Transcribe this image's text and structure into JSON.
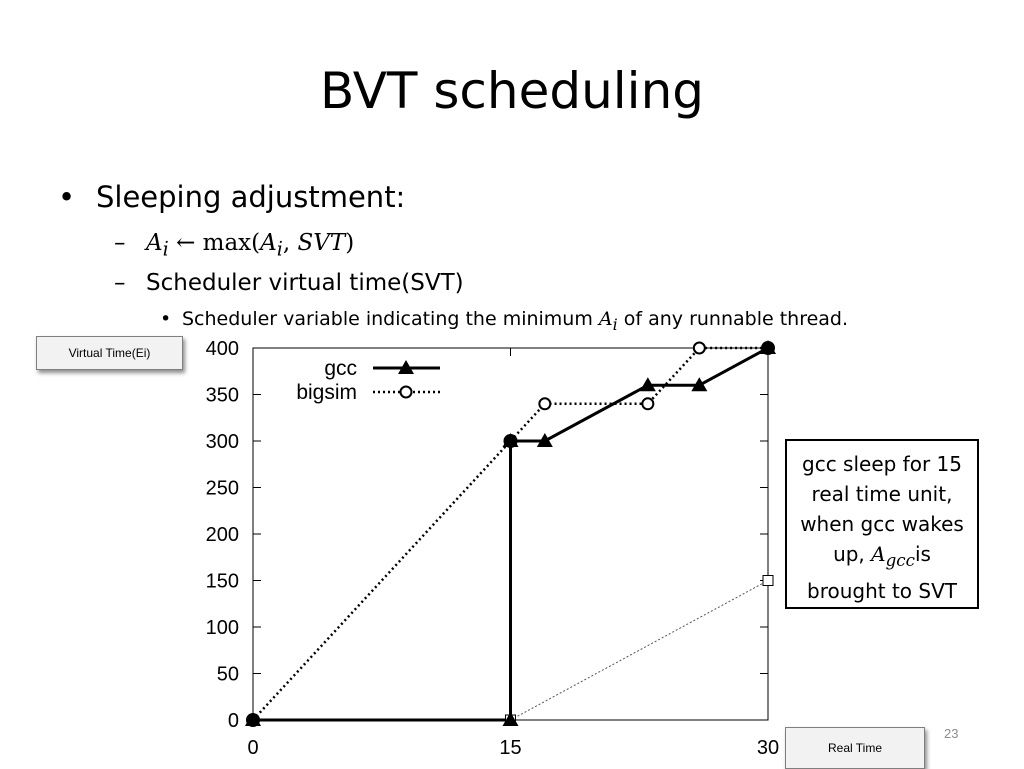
{
  "slide": {
    "title": "BVT scheduling",
    "bullet1": "Sleeping adjustment:",
    "sub1_var": "A",
    "sub1_sub": "i",
    "sub1_rest_a": " ← max(",
    "sub1_var2": "A",
    "sub1_sub2": "i",
    "sub1_rest_b": ", ",
    "sub1_svt": "SVT",
    "sub1_close": ")",
    "sub2": "Scheduler virtual time(SVT)",
    "sub3_pre": "Scheduler variable indicating the minimum ",
    "sub3_var": "A",
    "sub3_sub": "i",
    "sub3_post": " of any runnable thread.",
    "page_number": "23"
  },
  "labels": {
    "y_label": "Virtual Time(Ei)",
    "x_label": "Real Time"
  },
  "note": {
    "line1": "gcc sleep for 15",
    "line2": "real time unit,",
    "line3": "when gcc wakes",
    "line4_pre": "up, ",
    "line4_var": "A",
    "line4_sub": "gcc",
    "line4_post": "is",
    "line5": "brought to SVT"
  },
  "chart_data": {
    "type": "line",
    "title": "",
    "xlabel": "Real Time",
    "ylabel": "Virtual Time(Ei)",
    "xlim": [
      0,
      30
    ],
    "ylim": [
      0,
      400
    ],
    "xticks": [
      0,
      15,
      30
    ],
    "yticks": [
      0,
      50,
      100,
      150,
      200,
      250,
      300,
      350,
      400
    ],
    "legend_position": "top-left",
    "series": [
      {
        "name": "gcc",
        "style": "solid",
        "marker": "filled-triangle",
        "points": [
          [
            0,
            0
          ],
          [
            15,
            0
          ],
          [
            15,
            300
          ],
          [
            17,
            300
          ],
          [
            23,
            360
          ],
          [
            26,
            360
          ],
          [
            30,
            400
          ]
        ]
      },
      {
        "name": "bigsim",
        "style": "dotted",
        "marker": "open-circle",
        "points": [
          [
            0,
            0
          ],
          [
            15,
            300
          ],
          [
            17,
            340
          ],
          [
            23,
            340
          ],
          [
            26,
            400
          ],
          [
            30,
            400
          ]
        ]
      },
      {
        "name": "",
        "style": "thin-dotted",
        "marker": "open-square",
        "points": [
          [
            15,
            0
          ],
          [
            30,
            150
          ]
        ]
      }
    ],
    "overlay_markers": [
      {
        "type": "filled-circle",
        "x": 0,
        "y": 0
      },
      {
        "type": "filled-circle",
        "x": 15,
        "y": 300
      },
      {
        "type": "filled-circle",
        "x": 30,
        "y": 400
      }
    ]
  }
}
